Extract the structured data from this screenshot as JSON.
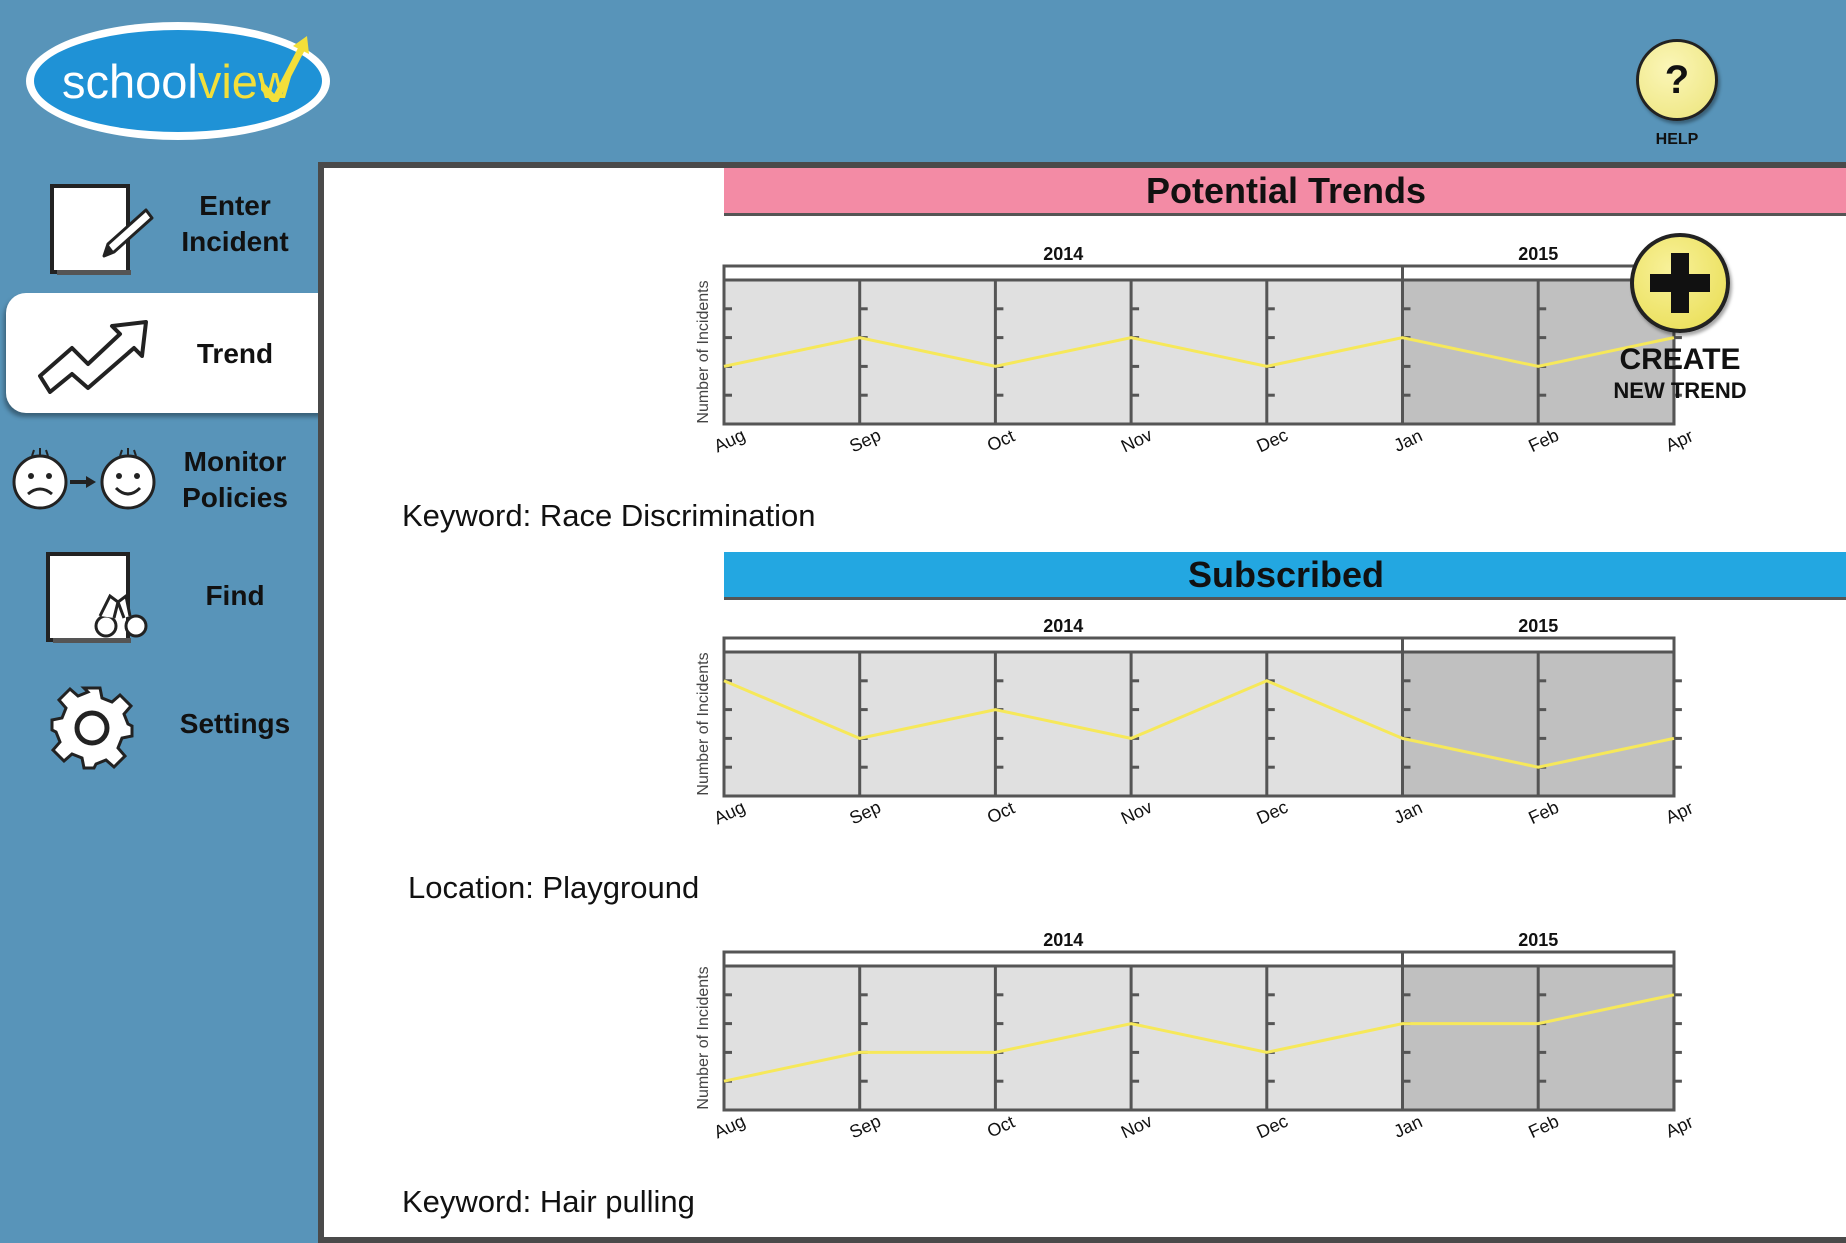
{
  "logo": {
    "text_a": "school",
    "text_b": "view",
    "icon": "trend-check-arrow-icon"
  },
  "help": {
    "symbol": "?",
    "label": "HELP",
    "icon": "help-icon"
  },
  "sidebar": {
    "items": [
      {
        "label_1": "Enter",
        "label_2": "Incident",
        "icon": "note-pencil-icon"
      },
      {
        "label_1": "Trend",
        "label_2": "",
        "icon": "trend-arrow-icon",
        "active": true
      },
      {
        "label_1": "Monitor",
        "label_2": "Policies",
        "icon": "sad-to-happy-icon"
      },
      {
        "label_1": "Find",
        "label_2": "",
        "icon": "binoculars-icon"
      },
      {
        "label_1": "Settings",
        "label_2": "",
        "icon": "gear-icon"
      }
    ]
  },
  "sections": {
    "potential": "Potential Trends",
    "subscribed": "Subscribed"
  },
  "create": {
    "label_1": "CREATE",
    "label_2": "NEW TREND",
    "icon": "plus-icon"
  },
  "colors": {
    "trend_line": "#f6e85a",
    "bar_pink": "#f38ba5",
    "bar_blue": "#23a7e1"
  },
  "chart_data": [
    {
      "type": "line",
      "caption": "Keyword: Race Discrimination",
      "years": [
        {
          "label": "2014"
        },
        {
          "label": "2015"
        }
      ],
      "ylabel": "Number of Incidents",
      "categories": [
        "Aug",
        "Sep",
        "Oct",
        "Nov",
        "Dec",
        "Jan",
        "Feb",
        "Apr"
      ],
      "values": [
        2,
        3,
        2,
        3,
        2,
        3,
        2,
        3
      ],
      "ylim": [
        0,
        5
      ]
    },
    {
      "type": "line",
      "caption": "Location: Playground",
      "years": [
        {
          "label": "2014"
        },
        {
          "label": "2015"
        }
      ],
      "ylabel": "Number of Incidents",
      "categories": [
        "Aug",
        "Sep",
        "Oct",
        "Nov",
        "Dec",
        "Jan",
        "Feb",
        "Apr"
      ],
      "values": [
        4,
        2,
        3,
        2,
        4,
        2,
        1,
        2
      ],
      "ylim": [
        0,
        5
      ]
    },
    {
      "type": "line",
      "caption": "Keyword: Hair pulling",
      "years": [
        {
          "label": "2014"
        },
        {
          "label": "2015"
        }
      ],
      "ylabel": "Number of Incidents",
      "categories": [
        "Aug",
        "Sep",
        "Oct",
        "Nov",
        "Dec",
        "Jan",
        "Feb",
        "Apr"
      ],
      "values": [
        1,
        2,
        2,
        3,
        2,
        3,
        3,
        4
      ],
      "ylim": [
        0,
        5
      ]
    }
  ]
}
